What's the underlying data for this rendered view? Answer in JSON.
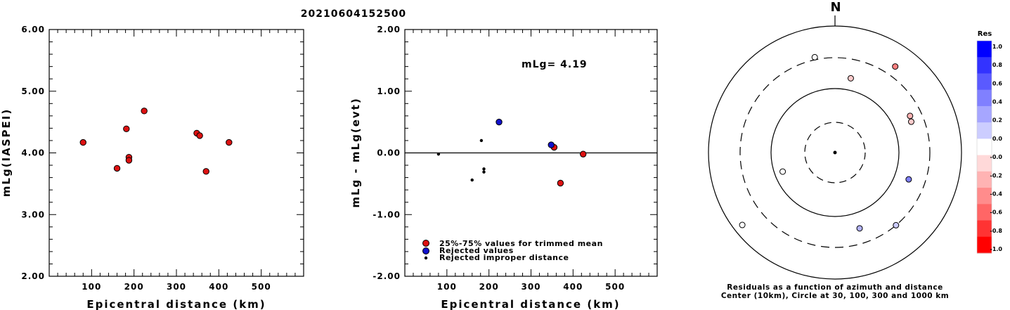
{
  "title": "20210604152500",
  "chart_data": [
    {
      "type": "scatter",
      "xlabel": "Epicentral distance (km)",
      "ylabel": "mLg(IASPEI)",
      "xlim": [
        0,
        600
      ],
      "ylim": [
        2.0,
        6.0
      ],
      "xticks": [
        "100",
        "200",
        "300",
        "400",
        "500"
      ],
      "yticks": [
        "2.00",
        "3.00",
        "4.00",
        "5.00",
        "6.00"
      ],
      "series": [
        {
          "marker": "red-circle",
          "points": [
            [
              80,
              4.17
            ],
            [
              160,
              3.75
            ],
            [
              182,
              4.39
            ],
            [
              188,
              3.93
            ],
            [
              188,
              3.88
            ],
            [
              224,
              4.68
            ],
            [
              348,
              4.32
            ],
            [
              355,
              4.28
            ],
            [
              370,
              3.7
            ],
            [
              424,
              4.17
            ]
          ]
        }
      ]
    },
    {
      "type": "scatter",
      "xlabel": "Epicentral distance (km)",
      "ylabel": "mLg - mLg(evt)",
      "xlim": [
        0,
        600
      ],
      "ylim": [
        -2.0,
        2.0
      ],
      "xticks": [
        "100",
        "200",
        "300",
        "400",
        "500"
      ],
      "yticks": [
        "-2.00",
        "-1.00",
        "0.00",
        "1.00",
        "2.00"
      ],
      "annotation": "mLg= 4.19",
      "series": [
        {
          "name": "25%-75% values for trimmed mean",
          "marker": "red-circle",
          "points": [
            [
              355,
              0.09
            ],
            [
              370,
              -0.49
            ],
            [
              424,
              -0.02
            ]
          ]
        },
        {
          "name": "Rejected values",
          "marker": "blue-circle",
          "points": [
            [
              224,
              0.5
            ],
            [
              348,
              0.13
            ]
          ]
        },
        {
          "name": "Rejected improper distance",
          "marker": "black-dot",
          "points": [
            [
              80,
              -0.02
            ],
            [
              160,
              -0.44
            ],
            [
              182,
              0.2
            ],
            [
              188,
              -0.26
            ],
            [
              188,
              -0.31
            ]
          ]
        }
      ]
    },
    {
      "type": "scatter",
      "north_label": "N",
      "caption_line1": "Residuals as a function of azimuth and distance",
      "caption_line2": "Center (10km), Circle at 30, 100, 300 and 1000 km",
      "colorbar": {
        "title": "Res",
        "ticks": [
          "1.0",
          "0.8",
          "0.6",
          "0.4",
          "0.2",
          "0.0",
          "-0.0",
          "-0.2",
          "-0.4",
          "-0.6",
          "-0.8",
          "-1.0"
        ],
        "colors": [
          "#0000ff",
          "#3333ff",
          "#5a5aff",
          "#8080ff",
          "#a6a6ff",
          "#cccdff",
          "#ffffff",
          "#ffd9d9",
          "#ffb3b3",
          "#ff8c8c",
          "#ff6666",
          "#ff3333",
          "#ff0000"
        ]
      },
      "stations": [
        {
          "azimuth": 348,
          "radius_frac": 0.77,
          "residual": 0.0
        },
        {
          "azimuth": 12,
          "radius_frac": 0.6,
          "residual": -0.2
        },
        {
          "azimuth": 35,
          "radius_frac": 0.83,
          "residual": -0.5
        },
        {
          "azimuth": 64,
          "radius_frac": 0.66,
          "residual": -0.3
        },
        {
          "azimuth": 68,
          "radius_frac": 0.65,
          "residual": -0.2
        },
        {
          "azimuth": 110,
          "radius_frac": 0.62,
          "residual": 0.5
        },
        {
          "azimuth": 140,
          "radius_frac": 0.75,
          "residual": 0.2
        },
        {
          "azimuth": 162,
          "radius_frac": 0.63,
          "residual": 0.3
        },
        {
          "azimuth": 232,
          "radius_frac": 0.93,
          "residual": 0.0
        },
        {
          "azimuth": 250,
          "radius_frac": 0.44,
          "residual": 0.0
        }
      ]
    }
  ]
}
